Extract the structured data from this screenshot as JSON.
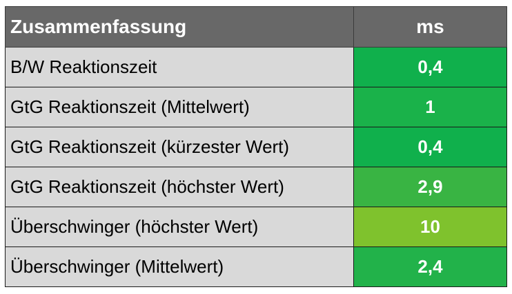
{
  "header": {
    "title": "Zusammenfassung",
    "unit": "ms"
  },
  "rows": [
    {
      "label": "B/W Reaktionszeit",
      "value": "0,4",
      "color": "#10b04c"
    },
    {
      "label": "GtG Reaktionszeit (Mittelwert)",
      "value": "1",
      "color": "#1ab24a"
    },
    {
      "label": "GtG Reaktionszeit (kürzester Wert)",
      "value": "0,4",
      "color": "#10b04c"
    },
    {
      "label": "GtG Reaktionszeit (höchster Wert)",
      "value": "2,9",
      "color": "#39b443"
    },
    {
      "label": "Überschwinger (höchster Wert)",
      "value": "10",
      "color": "#7fc22d"
    },
    {
      "label": "Überschwinger (Mittelwert)",
      "value": "2,4",
      "color": "#22b24a"
    }
  ]
}
